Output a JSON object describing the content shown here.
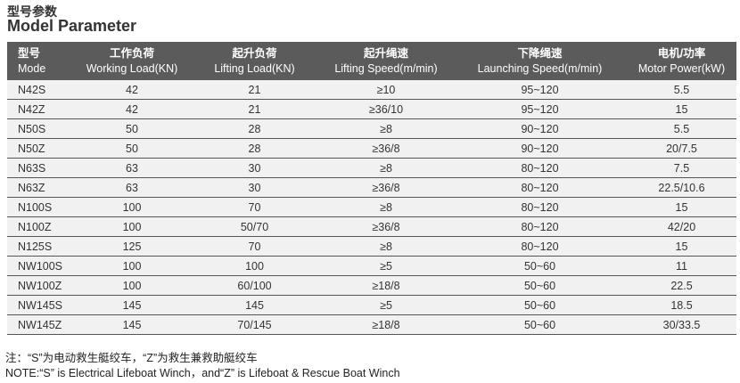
{
  "title_zh": "型号参数",
  "title_en": "Model Parameter",
  "headers": [
    {
      "zh": "型号",
      "en": "Mode"
    },
    {
      "zh": "工作负荷",
      "en": "Working Load(KN)"
    },
    {
      "zh": "起升负荷",
      "en": "Lifting Load(KN)"
    },
    {
      "zh": "起升绳速",
      "en": "Lifting Speed(m/min)"
    },
    {
      "zh": "下降绳速",
      "en": "Launching Speed(m/min)"
    },
    {
      "zh": "电机/功率",
      "en": "Motor Power(kW)"
    }
  ],
  "rows": [
    [
      "N42S",
      "42",
      "21",
      "≥10",
      "95~120",
      "5.5"
    ],
    [
      "N42Z",
      "42",
      "21",
      "≥36/10",
      "95~120",
      "15"
    ],
    [
      "N50S",
      "50",
      "28",
      "≥8",
      "90~120",
      "5.5"
    ],
    [
      "N50Z",
      "50",
      "28",
      "≥36/8",
      "90~120",
      "20/7.5"
    ],
    [
      "N63S",
      "63",
      "30",
      "≥8",
      "80~120",
      "7.5"
    ],
    [
      "N63Z",
      "63",
      "30",
      "≥36/8",
      "80~120",
      "22.5/10.6"
    ],
    [
      "N100S",
      "100",
      "70",
      "≥8",
      "80~120",
      "15"
    ],
    [
      "N100Z",
      "100",
      "50/70",
      "≥36/8",
      "80~120",
      "42/20"
    ],
    [
      "N125S",
      "125",
      "70",
      "≥8",
      "80~120",
      "15"
    ],
    [
      "NW100S",
      "100",
      "100",
      "≥5",
      "50~60",
      "11"
    ],
    [
      "NW100Z",
      "100",
      "60/100",
      "≥18/8",
      "50~60",
      "22.5"
    ],
    [
      "NW145S",
      "145",
      "145",
      "≥5",
      "50~60",
      "18.5"
    ],
    [
      "NW145Z",
      "145",
      "70/145",
      "≥18/8",
      "50~60",
      "30/33.5"
    ]
  ],
  "note_zh": "注：“S”为电动救生艇绞车，“Z”为救生兼救助艇绞车",
  "note_en": "NOTE:“S” is Electrical Lifeboat Winch，and“Z” is Lifeboat & Rescue Boat Winch"
}
